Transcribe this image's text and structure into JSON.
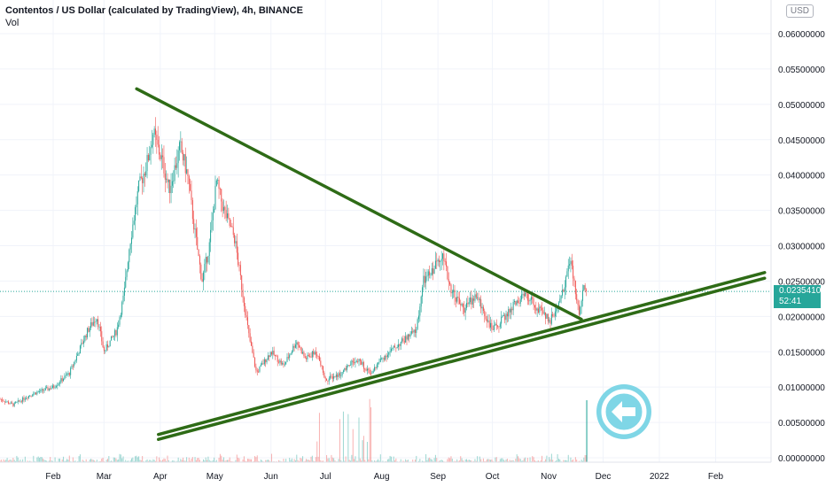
{
  "header": {
    "title": "Contentos / US Dollar (calculated by TradingView), 4h, BINANCE",
    "vol_label": "Vol"
  },
  "currency_badge": "USD",
  "last_price": {
    "value": "0.02354107",
    "countdown": "52:41"
  },
  "chart_data": {
    "type": "candlestick",
    "title": "Contentos / US Dollar (calculated by TradingView), 4h, BINANCE",
    "y_ticks": [
      "0.06000000",
      "0.05500000",
      "0.05000000",
      "0.04500000",
      "0.04000000",
      "0.03500000",
      "0.03000000",
      "0.02500000",
      "0.02000000",
      "0.01500000",
      "0.01000000",
      "0.00500000",
      "0.00000000"
    ],
    "y_tick_values": [
      0.06,
      0.055,
      0.05,
      0.045,
      0.04,
      0.035,
      0.03,
      0.025,
      0.02,
      0.015,
      0.01,
      0.005,
      0.0
    ],
    "x_ticks": [
      "Feb",
      "Mar",
      "Apr",
      "May",
      "Jun",
      "Jul",
      "Aug",
      "Sep",
      "Oct",
      "Nov",
      "Dec",
      "2022",
      "Feb"
    ],
    "ylim": [
      -0.0015,
      0.0645
    ],
    "price_path": [
      [
        "2021-01-01",
        0.0085
      ],
      [
        "2021-01-10",
        0.0075
      ],
      [
        "2021-01-20",
        0.009
      ],
      [
        "2021-02-01",
        0.01
      ],
      [
        "2021-02-10",
        0.012
      ],
      [
        "2021-02-20",
        0.018
      ],
      [
        "2021-02-25",
        0.02
      ],
      [
        "2021-03-01",
        0.015
      ],
      [
        "2021-03-08",
        0.018
      ],
      [
        "2021-03-12",
        0.023
      ],
      [
        "2021-03-15",
        0.03
      ],
      [
        "2021-03-20",
        0.038
      ],
      [
        "2021-03-25",
        0.042
      ],
      [
        "2021-03-28",
        0.046
      ],
      [
        "2021-04-02",
        0.042
      ],
      [
        "2021-04-06",
        0.038
      ],
      [
        "2021-04-12",
        0.044
      ],
      [
        "2021-04-16",
        0.04
      ],
      [
        "2021-04-20",
        0.032
      ],
      [
        "2021-04-24",
        0.025
      ],
      [
        "2021-04-28",
        0.03
      ],
      [
        "2021-05-02",
        0.039
      ],
      [
        "2021-05-06",
        0.035
      ],
      [
        "2021-05-12",
        0.031
      ],
      [
        "2021-05-16",
        0.024
      ],
      [
        "2021-05-20",
        0.017
      ],
      [
        "2021-05-24",
        0.012
      ],
      [
        "2021-06-01",
        0.015
      ],
      [
        "2021-06-08",
        0.013
      ],
      [
        "2021-06-15",
        0.0165
      ],
      [
        "2021-06-20",
        0.014
      ],
      [
        "2021-06-26",
        0.015
      ],
      [
        "2021-07-01",
        0.011
      ],
      [
        "2021-07-10",
        0.012
      ],
      [
        "2021-07-18",
        0.014
      ],
      [
        "2021-07-26",
        0.012
      ],
      [
        "2021-08-01",
        0.014
      ],
      [
        "2021-08-10",
        0.016
      ],
      [
        "2021-08-20",
        0.018
      ],
      [
        "2021-08-24",
        0.025
      ],
      [
        "2021-08-28",
        0.026
      ],
      [
        "2021-09-03",
        0.029
      ],
      [
        "2021-09-08",
        0.024
      ],
      [
        "2021-09-15",
        0.021
      ],
      [
        "2021-09-22",
        0.023
      ],
      [
        "2021-10-01",
        0.018
      ],
      [
        "2021-10-08",
        0.02
      ],
      [
        "2021-10-14",
        0.022
      ],
      [
        "2021-10-20",
        0.023
      ],
      [
        "2021-10-26",
        0.021
      ],
      [
        "2021-11-02",
        0.0195
      ],
      [
        "2021-11-07",
        0.022
      ],
      [
        "2021-11-10",
        0.025
      ],
      [
        "2021-11-13",
        0.028
      ],
      [
        "2021-11-16",
        0.023
      ],
      [
        "2021-11-18",
        0.02
      ],
      [
        "2021-11-20",
        0.025
      ],
      [
        "2021-11-22",
        0.0235
      ]
    ],
    "trendlines": [
      {
        "name": "upper-resistance",
        "from": [
          "2021-03-19",
          0.0522
        ],
        "to": [
          "2021-11-19",
          0.0196
        ],
        "color": "#2e6b16"
      },
      {
        "name": "lower-support-1",
        "from": [
          "2021-03-31",
          0.0033
        ],
        "to": [
          "2022-02-28",
          0.0262
        ],
        "color": "#2e6b16"
      },
      {
        "name": "lower-support-2",
        "from": [
          "2021-03-31",
          0.0026
        ],
        "to": [
          "2022-02-28",
          0.0254
        ],
        "color": "#2e6b16"
      }
    ],
    "last_value": 0.02354107,
    "up_color": "#26a69a",
    "down_color": "#ef5350",
    "grid": true
  },
  "overlay_button": {
    "icon": "arrow-left-icon",
    "color": "#7fd6e6"
  }
}
